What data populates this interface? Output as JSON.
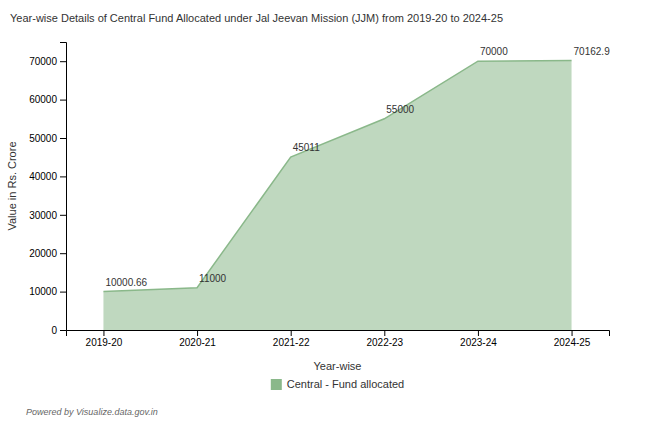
{
  "chart_data": {
    "type": "area",
    "title": "Year-wise Details of Central Fund Allocated under Jal Jeevan Mission (JJM) from 2019-20 to 2024-25",
    "x_label": "Year-wise",
    "y_label": "Value in Rs. Crore",
    "categories": [
      "2019-20",
      "2020-21",
      "2021-22",
      "2022-23",
      "2023-24",
      "2024-25"
    ],
    "series": [
      {
        "name": "Central - Fund allocated",
        "color": "#8ab88a",
        "values": [
          10000.66,
          11000,
          45011,
          55000,
          70000,
          70162.9
        ]
      }
    ],
    "ylim": [
      0,
      75000
    ],
    "yticks": [
      0,
      10000,
      20000,
      30000,
      40000,
      50000,
      60000,
      70000
    ],
    "data_labels": true,
    "grid": false,
    "legend": "bottom",
    "annotations": [
      "Powered by Visualize.data.gov.in"
    ]
  }
}
